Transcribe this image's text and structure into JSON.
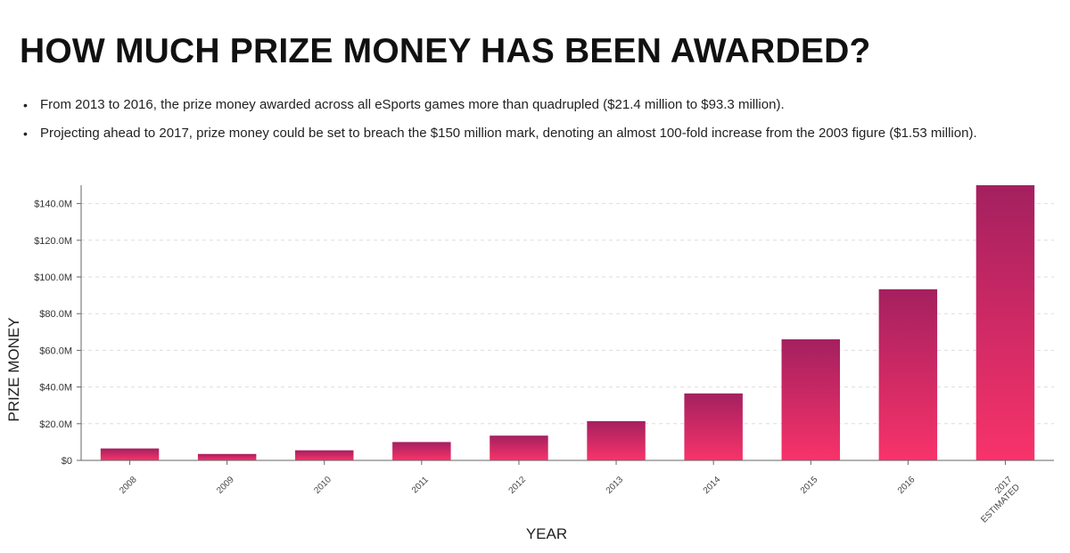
{
  "heading": "HOW MUCH PRIZE MONEY HAS BEEN AWARDED?",
  "bullets": [
    "From 2013 to 2016, the prize money awarded across all eSports games more than quadrupled ($21.4 million to $93.3 million).",
    "Projecting ahead to 2017, prize money could be set to breach the $150 million mark, denoting an almost 100-fold increase from the 2003 figure ($1.53 million)."
  ],
  "colors": {
    "bar_top": "#a4205f",
    "bar_bottom": "#f8336a",
    "grid": "#dddddd",
    "axis": "#666666"
  },
  "chart_data": {
    "type": "bar",
    "title": "",
    "xlabel": "YEAR",
    "ylabel": "PRIZE MONEY",
    "categories": [
      "2008",
      "2009",
      "2010",
      "2011",
      "2012",
      "2013",
      "2014",
      "2015",
      "2016",
      "2017\nESTIMATED"
    ],
    "values": [
      6.5,
      3.5,
      5.5,
      10,
      13.5,
      21.4,
      36.5,
      66,
      93.3,
      150
    ],
    "unit": "million USD",
    "ylim": [
      0,
      150
    ],
    "yticks": [
      0,
      20,
      40,
      60,
      80,
      100,
      120,
      140
    ],
    "ytick_labels": [
      "$0",
      "$20.0M",
      "$40.0M",
      "$60.0M",
      "$80.0M",
      "$100.0M",
      "$120.0M",
      "$140.0M"
    ],
    "grid": true,
    "legend": "none"
  }
}
